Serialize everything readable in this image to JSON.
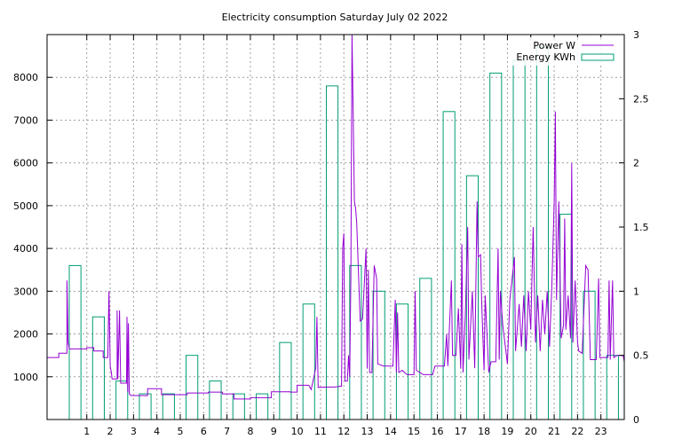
{
  "chart_data": {
    "type": "bar",
    "title": "Electricity consumption Saturday July 02 2022",
    "x": {
      "range": [
        -0.7,
        24.0
      ],
      "ticks": [
        1,
        2,
        3,
        4,
        5,
        6,
        7,
        8,
        9,
        10,
        11,
        12,
        13,
        14,
        15,
        16,
        17,
        18,
        19,
        20,
        21,
        22,
        23
      ],
      "grid": true
    },
    "y_left": {
      "range": [
        0,
        9000
      ],
      "ticks": [
        1000,
        2000,
        3000,
        4000,
        5000,
        6000,
        7000,
        8000
      ],
      "grid": true
    },
    "y_right": {
      "range": [
        0,
        3
      ],
      "ticks": [
        0,
        0.5,
        1,
        1.5,
        2,
        2.5,
        3
      ],
      "tick_labels": [
        "0",
        "0.5",
        "1",
        "1.5",
        "2",
        "2.5",
        "3"
      ]
    },
    "legend": {
      "placement": "top-right",
      "entries": [
        {
          "label": "Power W",
          "color": "#9400d3",
          "kind": "line"
        },
        {
          "label": "Energy KWh",
          "color": "#009e73",
          "kind": "box"
        }
      ]
    },
    "series": [
      {
        "name": "Energy KWh",
        "type": "bar",
        "axis": "right",
        "color": "#009e73",
        "x": [
          0,
          1,
          2,
          3,
          4,
          5,
          6,
          7,
          8,
          9,
          10,
          11,
          12,
          13,
          14,
          15,
          16,
          17,
          18,
          19,
          20,
          21,
          22,
          23
        ],
        "values": [
          1.2,
          0.8,
          0.3,
          0.2,
          0.2,
          0.5,
          0.3,
          0.2,
          0.2,
          0.6,
          0.9,
          2.6,
          1.2,
          1.0,
          0.9,
          1.1,
          2.4,
          1.9,
          2.7,
          2.8,
          2.9,
          1.6,
          1.0,
          0.5
        ]
      },
      {
        "name": "Power W",
        "type": "line",
        "axis": "left",
        "color": "#9400d3",
        "points": [
          [
            -0.7,
            1450
          ],
          [
            -0.2,
            1450
          ],
          [
            -0.2,
            1550
          ],
          [
            0.15,
            1550
          ],
          [
            0.15,
            3250
          ],
          [
            0.2,
            1800
          ],
          [
            0.25,
            1650
          ],
          [
            1.0,
            1650
          ],
          [
            1.0,
            1680
          ],
          [
            1.3,
            1680
          ],
          [
            1.3,
            1600
          ],
          [
            1.7,
            1600
          ],
          [
            1.7,
            1450
          ],
          [
            1.9,
            1450
          ],
          [
            1.95,
            3000
          ],
          [
            2.0,
            1250
          ],
          [
            2.05,
            1100
          ],
          [
            2.08,
            950
          ],
          [
            2.3,
            950
          ],
          [
            2.3,
            2550
          ],
          [
            2.33,
            950
          ],
          [
            2.4,
            2550
          ],
          [
            2.45,
            850
          ],
          [
            2.7,
            850
          ],
          [
            2.72,
            2400
          ],
          [
            2.75,
            650
          ],
          [
            2.78,
            2250
          ],
          [
            2.82,
            600
          ],
          [
            2.9,
            560
          ],
          [
            3.6,
            560
          ],
          [
            3.6,
            720
          ],
          [
            4.2,
            720
          ],
          [
            4.2,
            580
          ],
          [
            5.3,
            580
          ],
          [
            5.3,
            620
          ],
          [
            6.2,
            620
          ],
          [
            6.2,
            640
          ],
          [
            6.8,
            640
          ],
          [
            6.8,
            600
          ],
          [
            7.3,
            600
          ],
          [
            7.3,
            480
          ],
          [
            8.0,
            480
          ],
          [
            8.0,
            510
          ],
          [
            8.9,
            510
          ],
          [
            8.9,
            650
          ],
          [
            9.7,
            650
          ],
          [
            9.7,
            640
          ],
          [
            10.0,
            640
          ],
          [
            10.0,
            800
          ],
          [
            10.5,
            800
          ],
          [
            10.6,
            700
          ],
          [
            10.8,
            1200
          ],
          [
            10.85,
            2400
          ],
          [
            10.9,
            750
          ],
          [
            11.3,
            760
          ],
          [
            11.6,
            760
          ],
          [
            11.9,
            780
          ],
          [
            11.95,
            4000
          ],
          [
            12.0,
            4350
          ],
          [
            12.05,
            900
          ],
          [
            12.15,
            900
          ],
          [
            12.2,
            1500
          ],
          [
            12.25,
            1000
          ],
          [
            12.3,
            3300
          ],
          [
            12.35,
            9000
          ],
          [
            12.4,
            7200
          ],
          [
            12.45,
            5100
          ],
          [
            12.5,
            4950
          ],
          [
            12.55,
            4600
          ],
          [
            12.7,
            2300
          ],
          [
            12.8,
            2350
          ],
          [
            12.95,
            4000
          ],
          [
            13.0,
            1200
          ],
          [
            13.05,
            3500
          ],
          [
            13.1,
            1100
          ],
          [
            13.2,
            1100
          ],
          [
            13.3,
            3600
          ],
          [
            13.4,
            3300
          ],
          [
            13.45,
            1300
          ],
          [
            13.7,
            1250
          ],
          [
            14.1,
            1250
          ],
          [
            14.2,
            2800
          ],
          [
            14.25,
            1100
          ],
          [
            14.3,
            2500
          ],
          [
            14.35,
            1100
          ],
          [
            14.5,
            1150
          ],
          [
            14.7,
            1050
          ],
          [
            15.0,
            1050
          ],
          [
            15.05,
            3000
          ],
          [
            15.1,
            1150
          ],
          [
            15.4,
            1050
          ],
          [
            15.8,
            1050
          ],
          [
            15.9,
            1250
          ],
          [
            16.3,
            1250
          ],
          [
            16.4,
            2000
          ],
          [
            16.45,
            1250
          ],
          [
            16.6,
            3250
          ],
          [
            16.65,
            1500
          ],
          [
            16.8,
            1500
          ],
          [
            16.9,
            2600
          ],
          [
            17.0,
            1200
          ],
          [
            17.05,
            4100
          ],
          [
            17.1,
            1100
          ],
          [
            17.2,
            2500
          ],
          [
            17.3,
            4500
          ],
          [
            17.35,
            1400
          ],
          [
            17.5,
            3000
          ],
          [
            17.6,
            1200
          ],
          [
            17.7,
            5100
          ],
          [
            17.75,
            3800
          ],
          [
            17.85,
            3850
          ],
          [
            17.9,
            2700
          ],
          [
            18.0,
            1150
          ],
          [
            18.05,
            2900
          ],
          [
            18.2,
            1100
          ],
          [
            18.3,
            1350
          ],
          [
            18.5,
            1350
          ],
          [
            18.6,
            4000
          ],
          [
            18.65,
            1400
          ],
          [
            18.7,
            3000
          ],
          [
            18.8,
            2200
          ],
          [
            19.0,
            1300
          ],
          [
            19.1,
            2800
          ],
          [
            19.3,
            3800
          ],
          [
            19.35,
            1600
          ],
          [
            19.5,
            2700
          ],
          [
            19.6,
            1700
          ],
          [
            19.7,
            2900
          ],
          [
            19.8,
            1600
          ],
          [
            19.9,
            3000
          ],
          [
            20.0,
            2100
          ],
          [
            20.1,
            4500
          ],
          [
            20.2,
            1800
          ],
          [
            20.3,
            2900
          ],
          [
            20.4,
            1600
          ],
          [
            20.5,
            2800
          ],
          [
            20.6,
            2000
          ],
          [
            20.7,
            3000
          ],
          [
            20.8,
            1700
          ],
          [
            20.9,
            3100
          ],
          [
            21.0,
            5100
          ],
          [
            21.05,
            7200
          ],
          [
            21.1,
            2800
          ],
          [
            21.2,
            5100
          ],
          [
            21.3,
            1900
          ],
          [
            21.4,
            2200
          ],
          [
            21.45,
            4700
          ],
          [
            21.5,
            2100
          ],
          [
            21.6,
            2900
          ],
          [
            21.7,
            1900
          ],
          [
            21.75,
            6000
          ],
          [
            21.8,
            1800
          ],
          [
            21.9,
            3250
          ],
          [
            22.0,
            1800
          ],
          [
            22.05,
            1600
          ],
          [
            22.2,
            1550
          ],
          [
            22.35,
            3600
          ],
          [
            22.45,
            3500
          ],
          [
            22.55,
            1400
          ],
          [
            22.8,
            1400
          ],
          [
            22.9,
            3300
          ],
          [
            22.95,
            1450
          ],
          [
            23.3,
            1450
          ],
          [
            23.35,
            3250
          ],
          [
            23.4,
            1400
          ],
          [
            23.5,
            3250
          ],
          [
            23.55,
            1450
          ],
          [
            23.7,
            1500
          ],
          [
            23.95,
            1500
          ],
          [
            24.0,
            1350
          ]
        ]
      }
    ]
  }
}
